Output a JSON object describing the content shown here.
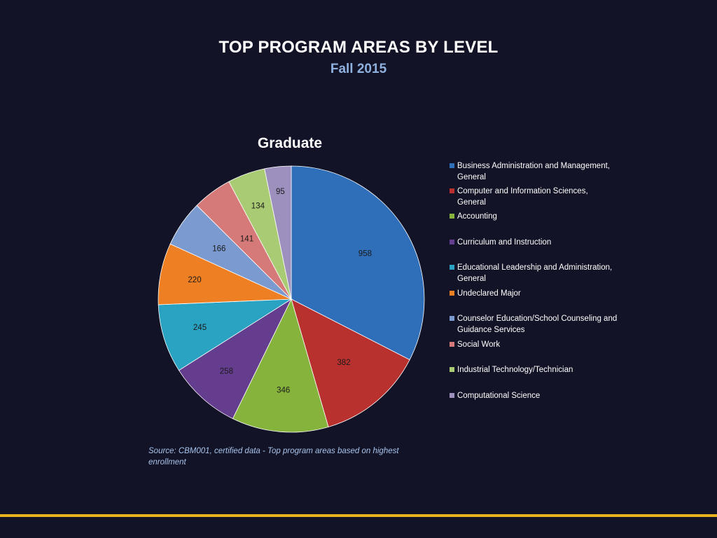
{
  "header": {
    "title": "TOP PROGRAM AREAS BY LEVEL",
    "subtitle": "Fall 2015"
  },
  "chart_data": {
    "type": "pie",
    "title": "Graduate",
    "categories": [
      "Business Administration and Management, General",
      "Computer and Information Sciences, General",
      "Accounting",
      "Curriculum and Instruction",
      "Educational Leadership and Administration, General",
      "Undeclared Major",
      "Counselor Education/School Counseling and Guidance Services",
      "Social Work",
      "Industrial Technology/Technician",
      "Computational Science"
    ],
    "values": [
      958,
      382,
      346,
      258,
      245,
      220,
      166,
      141,
      134,
      95
    ],
    "colors": [
      "#2f6fba",
      "#b8312f",
      "#86b33c",
      "#653d8e",
      "#2aa3c3",
      "#ee7f22",
      "#7b9ad0",
      "#d57a78",
      "#a9cb73",
      "#9e90be"
    ],
    "legend_position": "right",
    "start_angle": "12 o'clock, clockwise"
  },
  "footer": {
    "source": "Source: CBM001, certified data - Top program areas based on highest enrollment"
  },
  "colors": {
    "background": "#121326",
    "accent_rule": "#e8b31c",
    "subtitle": "#8fb1df"
  }
}
